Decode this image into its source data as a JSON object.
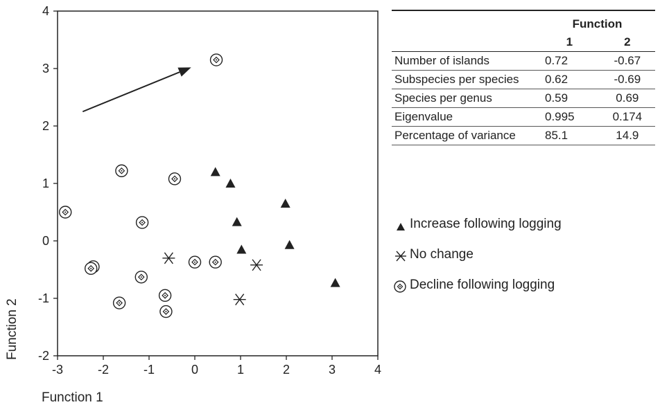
{
  "chart_data": {
    "type": "scatter",
    "xlabel": "Function 1",
    "ylabel": "Function 2",
    "xlim": [
      -3,
      4
    ],
    "ylim": [
      -2,
      4
    ],
    "xticks": [
      "-3",
      "-2",
      "-1",
      "0",
      "1",
      "2",
      "3",
      "4"
    ],
    "yticks": [
      "-2",
      "-1",
      "0",
      "1",
      "2",
      "3",
      "4"
    ],
    "grid": false,
    "legend_position": "right",
    "series": [
      {
        "name": "Increase following logging",
        "marker": "triangle",
        "x": [
          0.45,
          0.78,
          0.92,
          1.02,
          1.98,
          2.07,
          3.07
        ],
        "y": [
          1.2,
          1.0,
          0.33,
          -0.15,
          0.65,
          -0.07,
          -0.73
        ]
      },
      {
        "name": "No change",
        "marker": "asterisk",
        "x": [
          -0.57,
          1.35,
          0.98
        ],
        "y": [
          -0.3,
          -0.42,
          -1.02
        ]
      },
      {
        "name": "Decline following logging",
        "marker": "circled-dot",
        "x": [
          0.47,
          -1.6,
          -0.44,
          -2.83,
          -1.15,
          -2.22,
          -2.27,
          -1.17,
          -1.65,
          -0.65,
          -0.63,
          0.0,
          0.45
        ],
        "y": [
          3.15,
          1.22,
          1.08,
          0.5,
          0.32,
          -0.45,
          -0.48,
          -0.63,
          -1.08,
          -0.95,
          -1.23,
          -0.37,
          -0.37
        ]
      }
    ],
    "annotations": [
      {
        "type": "arrow",
        "from": [
          -2.45,
          2.25
        ],
        "to": [
          -0.08,
          3.02
        ]
      }
    ]
  },
  "table": {
    "header_group": "Function",
    "col1": "1",
    "col2": "2",
    "rows": [
      {
        "label": "Number of islands",
        "v1": "0.72",
        "v2": "-0.67"
      },
      {
        "label": "Subspecies per species",
        "v1": "0.62",
        "v2": "-0.69"
      },
      {
        "label": "Species per genus",
        "v1": "0.59",
        "v2": "0.69"
      },
      {
        "label": "Eigenvalue",
        "v1": "0.995",
        "v2": "0.174"
      },
      {
        "label": "Percentage of variance",
        "v1": "85.1",
        "v2": "14.9"
      }
    ]
  },
  "legend": {
    "increase": "Increase following logging",
    "nochange": "No change",
    "decline": "Decline following logging"
  }
}
